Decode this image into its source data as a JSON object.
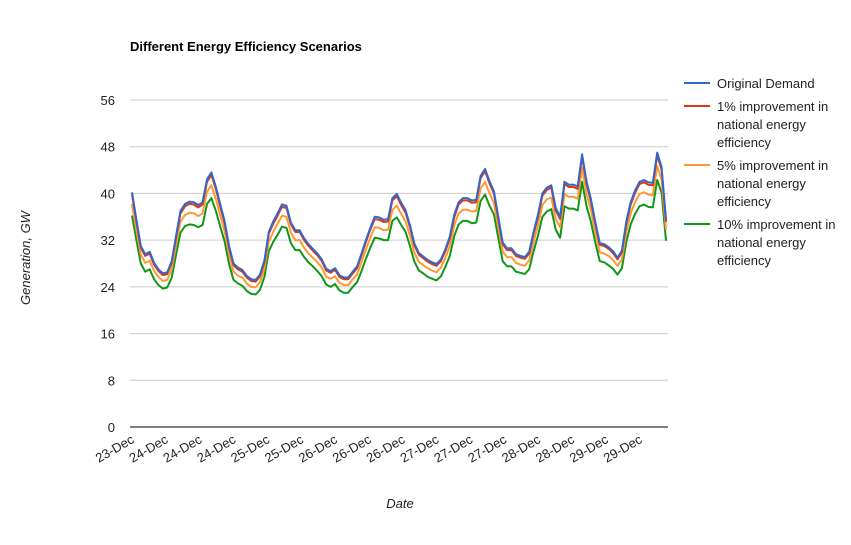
{
  "chart_data": {
    "type": "line",
    "title": "Different Energy Efficiency Scenarios",
    "xlabel": "Date",
    "ylabel": "Generation, GW",
    "ylim": [
      0,
      56
    ],
    "yticks": [
      0,
      8,
      16,
      24,
      32,
      40,
      48,
      56
    ],
    "grid": true,
    "legend_position": "right",
    "xtick_labels": [
      "23-Dec",
      "24-Dec",
      "24-Dec",
      "24-Dec",
      "25-Dec",
      "25-Dec",
      "26-Dec",
      "26-Dec",
      "26-Dec",
      "27-Dec",
      "27-Dec",
      "27-Dec",
      "28-Dec",
      "28-Dec",
      "29-Dec",
      "29-Dec"
    ],
    "x_count": 96,
    "series": [
      {
        "name": "Original Demand",
        "color": "#3366cc",
        "values": [
          40.2,
          35.5,
          31.0,
          29.6,
          30.0,
          28.1,
          27.0,
          26.3,
          26.5,
          28.4,
          32.8,
          37.0,
          38.2,
          38.6,
          38.5,
          38.0,
          38.5,
          42.4,
          43.6,
          41.1,
          38.1,
          35.2,
          31.0,
          28.0,
          27.3,
          26.9,
          25.9,
          25.3,
          25.2,
          26.1,
          28.5,
          33.4,
          35.2,
          36.6,
          38.1,
          37.9,
          35.0,
          33.7,
          33.7,
          32.3,
          31.3,
          30.5,
          29.7,
          28.7,
          27.1,
          26.7,
          27.2,
          26.0,
          25.6,
          25.6,
          26.6,
          27.5,
          29.7,
          32.0,
          34.1,
          36.0,
          35.9,
          35.5,
          35.6,
          39.2,
          39.9,
          38.4,
          37.1,
          34.5,
          31.4,
          29.8,
          29.2,
          28.6,
          28.2,
          27.9,
          28.7,
          30.4,
          32.6,
          36.3,
          38.5,
          39.2,
          39.2,
          38.8,
          38.9,
          43.0,
          44.2,
          42.1,
          40.4,
          36.0,
          31.6,
          30.6,
          30.6,
          29.6,
          29.3,
          29.1,
          30.0,
          33.4,
          36.4,
          40.0,
          41.0,
          41.4
        ]
      },
      {
        "name": "1% improvement in national energy efficiency",
        "color": "#dc3912",
        "values": [
          39.8,
          35.2,
          30.7,
          29.3,
          29.7,
          27.8,
          26.7,
          26.0,
          26.2,
          28.1,
          32.5,
          36.6,
          37.8,
          38.2,
          38.1,
          37.6,
          38.1,
          42.0,
          43.2,
          40.7,
          37.7,
          34.8,
          30.7,
          27.7,
          27.0,
          26.6,
          25.6,
          25.0,
          24.9,
          25.8,
          28.2,
          33.1,
          34.8,
          36.2,
          37.7,
          37.5,
          34.7,
          33.4,
          33.4,
          32.0,
          31.0,
          30.2,
          29.4,
          28.4,
          26.8,
          26.4,
          26.9,
          25.7,
          25.3,
          25.3,
          26.3,
          27.2,
          29.4,
          31.7,
          33.8,
          35.6,
          35.5,
          35.1,
          35.2,
          38.8,
          39.5,
          38.0,
          36.7,
          34.2,
          31.1,
          29.5,
          28.9,
          28.3,
          27.9,
          27.6,
          28.4,
          30.1,
          32.3,
          35.9,
          38.1,
          38.8,
          38.8,
          38.4,
          38.5,
          42.6,
          43.8,
          41.7,
          40.0,
          35.6,
          31.3,
          30.3,
          30.3,
          29.3,
          29.0,
          28.8,
          29.7,
          33.1,
          36.0,
          39.6,
          40.6,
          41.0
        ]
      },
      {
        "name": "5% improvement in national energy efficiency",
        "color": "#ff9933",
        "values": [
          38.2,
          33.7,
          29.5,
          28.1,
          28.5,
          26.7,
          25.7,
          25.0,
          25.2,
          27.0,
          31.2,
          35.2,
          36.3,
          36.7,
          36.6,
          36.1,
          36.6,
          40.3,
          41.4,
          39.0,
          36.2,
          33.4,
          29.5,
          26.6,
          25.9,
          25.6,
          24.6,
          24.0,
          23.9,
          24.8,
          27.1,
          31.7,
          33.4,
          34.8,
          36.2,
          36.0,
          33.3,
          32.0,
          32.0,
          30.7,
          29.7,
          29.0,
          28.2,
          27.3,
          25.7,
          25.4,
          25.8,
          24.7,
          24.3,
          24.3,
          25.3,
          26.1,
          28.2,
          30.4,
          32.4,
          34.2,
          34.1,
          33.7,
          33.8,
          37.2,
          37.9,
          36.5,
          35.2,
          32.8,
          29.8,
          28.3,
          27.7,
          27.2,
          26.8,
          26.5,
          27.3,
          28.9,
          31.0,
          34.5,
          36.6,
          37.2,
          37.2,
          36.9,
          37.0,
          40.9,
          42.0,
          40.0,
          38.4,
          34.2,
          30.0,
          29.1,
          29.1,
          28.1,
          27.8,
          27.6,
          28.5,
          31.7,
          34.6,
          38.0,
          39.0,
          39.3
        ]
      },
      {
        "name": "10% improvement in national energy efficiency",
        "color": "#109618",
        "values": [
          36.2,
          32.0,
          28.0,
          26.6,
          27.0,
          25.3,
          24.3,
          23.7,
          23.9,
          25.6,
          29.5,
          33.3,
          34.4,
          34.7,
          34.6,
          34.2,
          34.6,
          38.2,
          39.2,
          37.0,
          34.3,
          31.7,
          27.9,
          25.2,
          24.6,
          24.2,
          23.3,
          22.8,
          22.7,
          23.5,
          25.7,
          30.1,
          31.7,
          32.9,
          34.3,
          34.1,
          31.5,
          30.3,
          30.3,
          29.1,
          28.2,
          27.5,
          26.7,
          25.8,
          24.4,
          24.0,
          24.5,
          23.4,
          23.0,
          23.0,
          24.0,
          24.8,
          26.7,
          28.8,
          30.7,
          32.4,
          32.3,
          32.0,
          32.0,
          35.3,
          35.9,
          34.6,
          33.4,
          31.0,
          28.3,
          26.8,
          26.3,
          25.7,
          25.4,
          25.1,
          25.8,
          27.4,
          29.3,
          32.7,
          34.7,
          35.3,
          35.3,
          34.9,
          35.0,
          38.7,
          39.8,
          37.9,
          36.4,
          32.4,
          28.4,
          27.5,
          27.5,
          26.6,
          26.4,
          26.2,
          27.0,
          30.1,
          32.8,
          36.0,
          36.9,
          37.3
        ]
      }
    ],
    "series_tail": [
      [
        37.5,
        36.0,
        42.0,
        41.5,
        41.5,
        41.2,
        46.7,
        42.0,
        39.0,
        35.0,
        31.5,
        31.3,
        30.8,
        30.1,
        29.0,
        30.2,
        35.2,
        38.5,
        40.5,
        42.0,
        42.3,
        41.9,
        41.8,
        47.0,
        44.5,
        35.5
      ],
      [
        37.1,
        35.6,
        41.6,
        41.1,
        41.1,
        40.8,
        46.3,
        41.6,
        38.6,
        34.7,
        31.2,
        31.0,
        30.5,
        29.8,
        28.7,
        29.9,
        34.8,
        38.1,
        40.1,
        41.6,
        41.9,
        41.5,
        41.4,
        46.5,
        44.1,
        35.1
      ],
      [
        35.6,
        34.2,
        39.9,
        39.4,
        39.4,
        39.1,
        44.4,
        39.9,
        37.1,
        33.3,
        29.9,
        29.7,
        29.3,
        28.6,
        27.6,
        28.7,
        33.4,
        36.6,
        38.5,
        39.9,
        40.2,
        39.8,
        39.7,
        44.7,
        42.3,
        33.7
      ],
      [
        33.8,
        32.4,
        37.8,
        37.4,
        37.4,
        37.1,
        42.0,
        37.8,
        35.1,
        31.5,
        28.4,
        28.2,
        27.7,
        27.1,
        26.1,
        27.2,
        31.7,
        34.7,
        36.5,
        37.8,
        38.1,
        37.7,
        37.6,
        42.3,
        40.1,
        31.9
      ]
    ]
  }
}
